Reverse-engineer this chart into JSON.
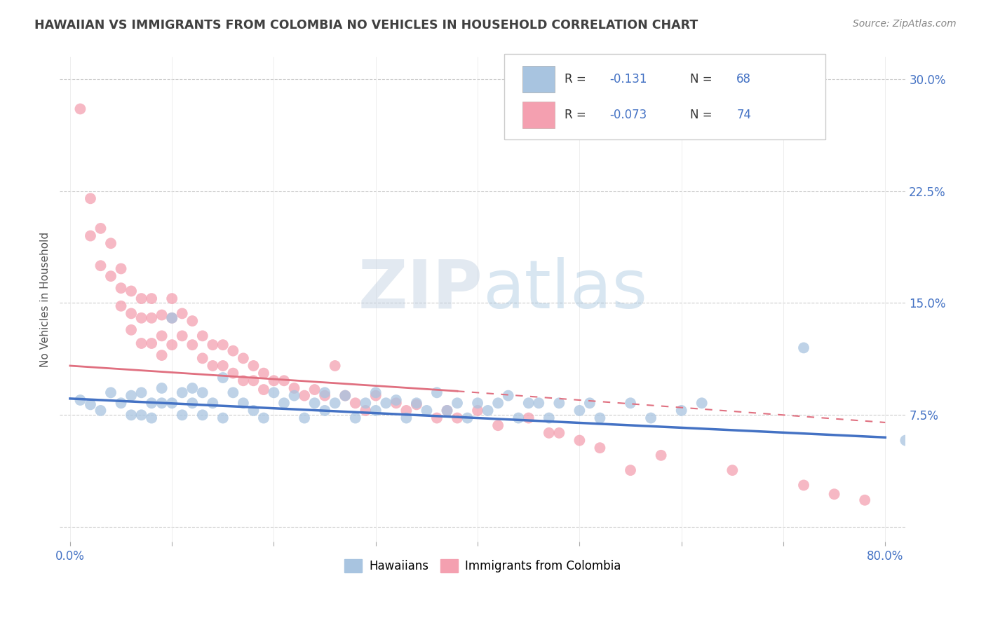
{
  "title": "HAWAIIAN VS IMMIGRANTS FROM COLOMBIA NO VEHICLES IN HOUSEHOLD CORRELATION CHART",
  "source": "Source: ZipAtlas.com",
  "ylabel": "No Vehicles in Household",
  "xlim": [
    -0.01,
    0.82
  ],
  "ylim": [
    -0.01,
    0.315
  ],
  "xtick_positions": [
    0.0,
    0.1,
    0.2,
    0.3,
    0.4,
    0.5,
    0.6,
    0.7,
    0.8
  ],
  "xtick_labels": [
    "0.0%",
    "",
    "",
    "",
    "",
    "",
    "",
    "",
    "80.0%"
  ],
  "ytick_positions": [
    0.0,
    0.075,
    0.15,
    0.225,
    0.3
  ],
  "ytick_labels_right": [
    "",
    "7.5%",
    "15.0%",
    "22.5%",
    "30.0%"
  ],
  "watermark_zip": "ZIP",
  "watermark_atlas": "atlas",
  "blue_color": "#a8c4e0",
  "pink_color": "#f4a0b0",
  "blue_line_color": "#4472c4",
  "pink_line_solid": {
    "x0": 0.0,
    "y0": 0.108,
    "x1": 0.38,
    "y1": 0.091
  },
  "pink_line_dash": {
    "x0": 0.38,
    "y0": 0.091,
    "x1": 0.8,
    "y1": 0.07
  },
  "blue_line": {
    "x0": 0.0,
    "y0": 0.086,
    "x1": 0.8,
    "y1": 0.06
  },
  "hawaiians_x": [
    0.01,
    0.02,
    0.03,
    0.04,
    0.05,
    0.06,
    0.06,
    0.07,
    0.07,
    0.08,
    0.08,
    0.09,
    0.09,
    0.1,
    0.1,
    0.11,
    0.11,
    0.12,
    0.12,
    0.13,
    0.13,
    0.14,
    0.15,
    0.15,
    0.16,
    0.17,
    0.18,
    0.19,
    0.2,
    0.21,
    0.22,
    0.23,
    0.24,
    0.25,
    0.25,
    0.26,
    0.27,
    0.28,
    0.29,
    0.3,
    0.3,
    0.31,
    0.32,
    0.33,
    0.34,
    0.35,
    0.36,
    0.37,
    0.38,
    0.39,
    0.4,
    0.41,
    0.42,
    0.43,
    0.44,
    0.45,
    0.46,
    0.47,
    0.48,
    0.5,
    0.51,
    0.52,
    0.55,
    0.57,
    0.6,
    0.62,
    0.72,
    0.82
  ],
  "hawaiians_y": [
    0.085,
    0.082,
    0.078,
    0.09,
    0.083,
    0.088,
    0.075,
    0.09,
    0.075,
    0.083,
    0.073,
    0.093,
    0.083,
    0.14,
    0.083,
    0.09,
    0.075,
    0.093,
    0.083,
    0.09,
    0.075,
    0.083,
    0.1,
    0.073,
    0.09,
    0.083,
    0.078,
    0.073,
    0.09,
    0.083,
    0.088,
    0.073,
    0.083,
    0.078,
    0.09,
    0.083,
    0.088,
    0.073,
    0.083,
    0.078,
    0.09,
    0.083,
    0.085,
    0.073,
    0.083,
    0.078,
    0.09,
    0.078,
    0.083,
    0.073,
    0.083,
    0.078,
    0.083,
    0.088,
    0.073,
    0.083,
    0.083,
    0.073,
    0.083,
    0.078,
    0.083,
    0.073,
    0.083,
    0.073,
    0.078,
    0.083,
    0.12,
    0.058
  ],
  "colombia_x": [
    0.01,
    0.02,
    0.02,
    0.03,
    0.03,
    0.04,
    0.04,
    0.05,
    0.05,
    0.05,
    0.06,
    0.06,
    0.06,
    0.07,
    0.07,
    0.07,
    0.08,
    0.08,
    0.08,
    0.09,
    0.09,
    0.09,
    0.1,
    0.1,
    0.1,
    0.11,
    0.11,
    0.12,
    0.12,
    0.13,
    0.13,
    0.14,
    0.14,
    0.15,
    0.15,
    0.16,
    0.16,
    0.17,
    0.17,
    0.18,
    0.18,
    0.19,
    0.19,
    0.2,
    0.21,
    0.22,
    0.23,
    0.24,
    0.25,
    0.26,
    0.27,
    0.28,
    0.29,
    0.3,
    0.32,
    0.33,
    0.34,
    0.36,
    0.37,
    0.38,
    0.4,
    0.42,
    0.45,
    0.47,
    0.48,
    0.5,
    0.52,
    0.55,
    0.58,
    0.65,
    0.72,
    0.75,
    0.78
  ],
  "colombia_y": [
    0.28,
    0.22,
    0.195,
    0.2,
    0.175,
    0.19,
    0.168,
    0.173,
    0.16,
    0.148,
    0.158,
    0.143,
    0.132,
    0.153,
    0.14,
    0.123,
    0.153,
    0.14,
    0.123,
    0.142,
    0.128,
    0.115,
    0.153,
    0.14,
    0.122,
    0.143,
    0.128,
    0.138,
    0.122,
    0.128,
    0.113,
    0.122,
    0.108,
    0.122,
    0.108,
    0.118,
    0.103,
    0.113,
    0.098,
    0.108,
    0.098,
    0.103,
    0.092,
    0.098,
    0.098,
    0.093,
    0.088,
    0.092,
    0.088,
    0.108,
    0.088,
    0.083,
    0.078,
    0.088,
    0.083,
    0.078,
    0.082,
    0.073,
    0.078,
    0.073,
    0.078,
    0.068,
    0.073,
    0.063,
    0.063,
    0.058,
    0.053,
    0.038,
    0.048,
    0.038,
    0.028,
    0.022,
    0.018
  ]
}
